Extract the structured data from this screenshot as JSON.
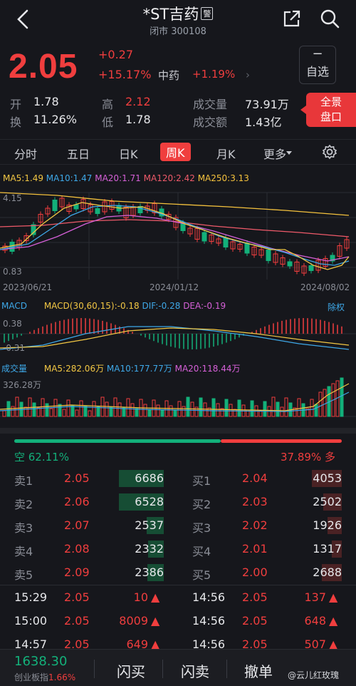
{
  "header": {
    "title": "*ST吉药",
    "badge": "警",
    "subtitle": "闭市 300108"
  },
  "quote": {
    "price": "2.05",
    "change": "+0.27",
    "change_pct": "+15.17%",
    "sector": "中药",
    "sector_pct": "+1.19%",
    "add_plus": "−",
    "add_label": "自选",
    "open_label": "开",
    "open": "1.78",
    "high_label": "高",
    "high": "2.12",
    "volume_label": "成交量",
    "volume": "73.91万",
    "turnover_label": "换",
    "turnover": "11.26%",
    "low_label": "低",
    "low": "1.78",
    "amount_label": "成交额",
    "amount": "1.43亿",
    "panorama_label": "全景\n盘口"
  },
  "tabs": [
    {
      "label": "分时"
    },
    {
      "label": "五日"
    },
    {
      "label": "日K"
    },
    {
      "label": "周K"
    },
    {
      "label": "月K"
    },
    {
      "label": "更多"
    }
  ],
  "active_tab": "周K",
  "ma_legend": [
    {
      "text": "MA5:1.49",
      "color": "#f2c744"
    },
    {
      "text": "MA10:1.47",
      "color": "#3ea8e8"
    },
    {
      "text": "MA20:1.71",
      "color": "#d660d8"
    },
    {
      "text": "MA120:2.42",
      "color": "#ef5a6a"
    },
    {
      "text": "MA250:3.13",
      "color": "#f5c23d"
    }
  ],
  "kline": {
    "high_label": "4.15",
    "low_label": "0.83",
    "dates": [
      "2023/06/21",
      "2024/01/12",
      "2024/08/02"
    ]
  },
  "macd": {
    "name": "MACD",
    "params": "MACD(30,60,15):-0.18",
    "dif": "DIF:-0.28",
    "dea": "DEA:-0.19",
    "right": "除权",
    "top": "0.38",
    "bottom": "-0.31"
  },
  "vol": {
    "name": "成交量",
    "ma5": "MA5:282.06万",
    "ma10": "MA10:177.77万",
    "ma20": "MA20:118.44万",
    "top": "326.28万"
  },
  "ratio": {
    "sell_label": "空 62.11%",
    "buy_label": "37.89% 多",
    "sell_frac": 0.6211
  },
  "asks": [
    {
      "label": "卖1",
      "price": "2.05",
      "vol": "6686",
      "frac": 0.9
    },
    {
      "label": "卖2",
      "price": "2.06",
      "vol": "6528",
      "frac": 0.9
    },
    {
      "label": "卖3",
      "price": "2.07",
      "vol": "2537",
      "frac": 0.35
    },
    {
      "label": "卖4",
      "price": "2.08",
      "vol": "2332",
      "frac": 0.32
    },
    {
      "label": "卖5",
      "price": "2.09",
      "vol": "2386",
      "frac": 0.33
    }
  ],
  "bids": [
    {
      "label": "买1",
      "price": "2.04",
      "vol": "4053",
      "frac": 0.6
    },
    {
      "label": "买2",
      "price": "2.03",
      "vol": "2502",
      "frac": 0.37
    },
    {
      "label": "买3",
      "price": "2.02",
      "vol": "1926",
      "frac": 0.29
    },
    {
      "label": "买4",
      "price": "2.01",
      "vol": "1317",
      "frac": 0.2
    },
    {
      "label": "买5",
      "price": "2.00",
      "vol": "2688",
      "frac": 0.4
    }
  ],
  "ticks_left": [
    {
      "time": "15:29",
      "price": "2.05",
      "vol": "10"
    },
    {
      "time": "15:00",
      "price": "2.05",
      "vol": "8009"
    },
    {
      "time": "14:57",
      "price": "2.05",
      "vol": "649"
    }
  ],
  "ticks_right": [
    {
      "time": "14:56",
      "price": "2.05",
      "vol": "137"
    },
    {
      "time": "14:56",
      "price": "2.05",
      "vol": "648"
    },
    {
      "time": "14:56",
      "price": "2.05",
      "vol": "507"
    }
  ],
  "bottom": {
    "index_value": "1638.30",
    "index_label": "创业板指",
    "index_pct": "1.66%",
    "flash_buy": "闪买",
    "flash_sell": "闪卖",
    "cancel": "撤单",
    "watermark": "@云儿红玫瑰"
  }
}
